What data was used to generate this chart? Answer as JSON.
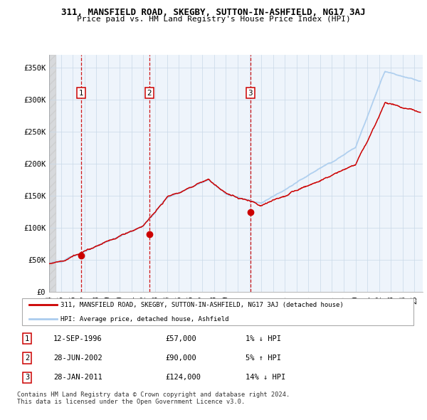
{
  "title": "311, MANSFIELD ROAD, SKEGBY, SUTTON-IN-ASHFIELD, NG17 3AJ",
  "subtitle": "Price paid vs. HM Land Registry's House Price Index (HPI)",
  "hpi_color": "#aaccee",
  "price_color": "#cc0000",
  "dashed_color": "#cc0000",
  "ylim": [
    0,
    370000
  ],
  "yticks": [
    0,
    50000,
    100000,
    150000,
    200000,
    250000,
    300000,
    350000
  ],
  "ytick_labels": [
    "£0",
    "£50K",
    "£100K",
    "£150K",
    "£200K",
    "£250K",
    "£300K",
    "£350K"
  ],
  "xlim_start": 1994.0,
  "xlim_end": 2025.7,
  "transactions": [
    {
      "label": "1",
      "date_num": 1996.71,
      "price": 57000
    },
    {
      "label": "2",
      "date_num": 2002.49,
      "price": 90000
    },
    {
      "label": "3",
      "date_num": 2011.07,
      "price": 124000
    }
  ],
  "legend_line1": "311, MANSFIELD ROAD, SKEGBY, SUTTON-IN-ASHFIELD, NG17 3AJ (detached house)",
  "legend_line2": "HPI: Average price, detached house, Ashfield",
  "table_rows": [
    {
      "num": "1",
      "date": "12-SEP-1996",
      "price": "£57,000",
      "change": "1% ↓ HPI"
    },
    {
      "num": "2",
      "date": "28-JUN-2002",
      "price": "£90,000",
      "change": "5% ↑ HPI"
    },
    {
      "num": "3",
      "date": "28-JAN-2011",
      "price": "£124,000",
      "change": "14% ↓ HPI"
    }
  ],
  "footnote": "Contains HM Land Registry data © Crown copyright and database right 2024.\nThis data is licensed under the Open Government Licence v3.0."
}
